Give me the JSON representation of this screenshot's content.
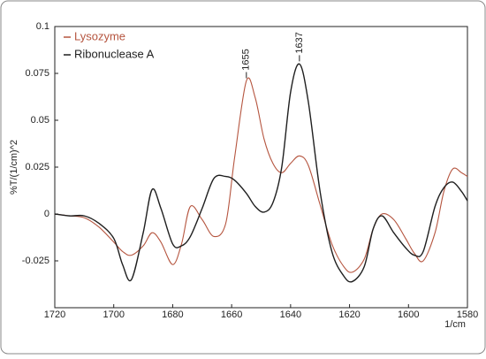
{
  "chart_data": {
    "type": "line",
    "x_label": "1/cm",
    "y_label": "%T/(1/cm)^2",
    "x": [
      1720,
      1715,
      1710,
      1705,
      1700,
      1697,
      1694,
      1690,
      1687,
      1684,
      1680,
      1677,
      1674,
      1670,
      1666,
      1662,
      1659,
      1655,
      1652,
      1649,
      1646,
      1643,
      1640,
      1637,
      1634,
      1630,
      1626,
      1622,
      1619,
      1615,
      1612,
      1609,
      1605,
      1601,
      1598,
      1595,
      1591,
      1588,
      1585,
      1582,
      1580
    ],
    "series": [
      {
        "name": "Lysozyme",
        "color": "#b5553f",
        "values": [
          0,
          -0.001,
          -0.002,
          -0.007,
          -0.015,
          -0.02,
          -0.022,
          -0.017,
          -0.01,
          -0.015,
          -0.027,
          -0.016,
          0.004,
          -0.003,
          -0.012,
          -0.005,
          0.03,
          0.071,
          0.062,
          0.04,
          0.027,
          0.022,
          0.027,
          0.031,
          0.026,
          0.005,
          -0.016,
          -0.028,
          -0.031,
          -0.024,
          -0.008,
          0,
          -0.003,
          -0.013,
          -0.021,
          -0.025,
          -0.01,
          0.012,
          0.024,
          0.022,
          0.02
        ]
      },
      {
        "name": "Ribonuclease A",
        "color": "#1f1f1f",
        "values": [
          0,
          -0.001,
          -0.001,
          -0.005,
          -0.013,
          -0.027,
          -0.035,
          -0.01,
          0.013,
          0.003,
          -0.016,
          -0.017,
          -0.012,
          0.003,
          0.019,
          0.02,
          0.018,
          0.011,
          0.004,
          0.001,
          0.006,
          0.025,
          0.065,
          0.08,
          0.06,
          0.012,
          -0.02,
          -0.033,
          -0.036,
          -0.028,
          -0.008,
          -0.001,
          -0.01,
          -0.018,
          -0.022,
          -0.02,
          0.004,
          0.014,
          0.017,
          0.012,
          0.007
        ]
      }
    ],
    "annotations": [
      {
        "text": "1655",
        "x": 1655
      },
      {
        "text": "1637",
        "x": 1637
      }
    ],
    "xlim": [
      1720,
      1580
    ],
    "xticks": [
      1720,
      1700,
      1680,
      1660,
      1640,
      1620,
      1600,
      1580
    ],
    "ylim": [
      -0.05,
      0.1
    ],
    "yticks": [
      -0.025,
      0,
      0.025,
      0.05,
      0.075,
      0.1
    ],
    "grid": false,
    "legend": "upper left"
  }
}
